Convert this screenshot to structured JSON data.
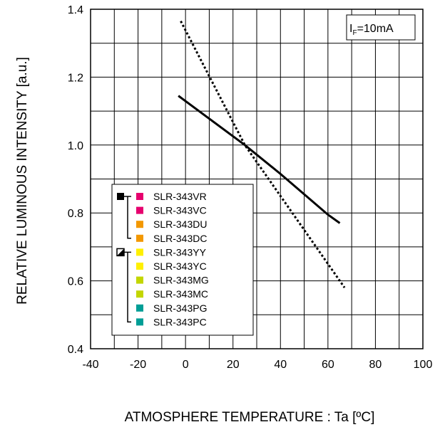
{
  "chart_data": {
    "type": "line",
    "title": "",
    "xlabel": "ATMOSPHERE TEMPERATURE : Ta [ºC]",
    "ylabel": "RELATIVE LUMINOUS INTENSITY [a.u.]",
    "xlim": [
      -40,
      100
    ],
    "ylim": [
      0.4,
      1.4
    ],
    "x_ticks": [
      -40,
      -20,
      0,
      20,
      40,
      60,
      80,
      100
    ],
    "y_ticks": [
      0.4,
      0.6,
      0.8,
      1.0,
      1.2,
      1.4
    ],
    "x_tick_labels": [
      "-40",
      "-20",
      "0",
      "20",
      "40",
      "60",
      "80",
      "100"
    ],
    "y_tick_labels": [
      "0.4",
      "0.6",
      "0.8",
      "1.0",
      "1.2",
      "1.4"
    ],
    "grid": true,
    "condition": {
      "prefix": "I",
      "subscript": "F",
      "suffix": "=10mA"
    },
    "series": [
      {
        "style": "solid",
        "color": "#000000",
        "x": [
          -3,
          25,
          40,
          60,
          65
        ],
        "y": [
          1.145,
          1.0,
          0.915,
          0.795,
          0.77
        ]
      },
      {
        "style": "dotted",
        "color": "#000000",
        "x": [
          -2,
          25,
          67
        ],
        "y": [
          1.365,
          1.0,
          0.58
        ]
      }
    ],
    "legend": {
      "placement": "bottom-left",
      "groups": [
        {
          "marker": "solid",
          "marker_color": "#000000",
          "items": [
            {
              "name": "SLR-343VR",
              "color": "#e6006e"
            },
            {
              "name": "SLR-343VC",
              "color": "#e6006e"
            },
            {
              "name": "SLR-343DU",
              "color": "#f39800"
            },
            {
              "name": "SLR-343DC",
              "color": "#f39800"
            }
          ]
        },
        {
          "marker": "half",
          "marker_color": "#000000",
          "items": [
            {
              "name": "SLR-343YY",
              "color": "#fff000"
            },
            {
              "name": "SLR-343YC",
              "color": "#fff000"
            },
            {
              "name": "SLR-343MG",
              "color": "#c3d600"
            },
            {
              "name": "SLR-343MC",
              "color": "#c3d600"
            },
            {
              "name": "SLR-343PG",
              "color": "#009e96"
            },
            {
              "name": "SLR-343PC",
              "color": "#009e96"
            }
          ]
        }
      ]
    }
  }
}
